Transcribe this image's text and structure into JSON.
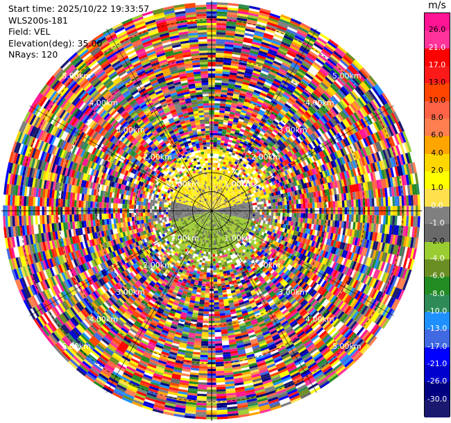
{
  "info": {
    "start_time": "Start time: 2025/10/22 19:33:57",
    "instrument": "WLS200s-181",
    "field": "Field: VEL",
    "elevation": "Elevation(deg): 35.00",
    "nrays": "NRays: 120"
  },
  "colorbar": {
    "unit": "m/s",
    "ticks": [
      "26.0",
      "21.0",
      "17.0",
      "13.0",
      "10.0",
      "8.0",
      "6.0",
      "4.0",
      "2.0",
      "1.0",
      "0.0",
      "-1.0",
      "-2.0",
      "-4.0",
      "-6.0",
      "-8.0",
      "-10.0",
      "-13.0",
      "-17.0",
      "-21.0",
      "-26.0",
      "-30.0"
    ],
    "colors": [
      "#ff1493",
      "#ff3399",
      "#ff0000",
      "#ff1a1a",
      "#ff4500",
      "#ff6347",
      "#ff7f50",
      "#ffa500",
      "#ffd700",
      "#ffff00",
      "#ffe14d",
      "#808080",
      "#696969",
      "#9acd32",
      "#6b8e23",
      "#228b22",
      "#2e8b57",
      "#1e90ff",
      "#4169e1",
      "#0000ff",
      "#0000cd",
      "#000080",
      "#191970"
    ]
  },
  "chart_data": {
    "type": "heatmap",
    "title": "",
    "projection": "polar (PPI)",
    "field": "VEL",
    "elevation_deg": 35.0,
    "n_rays": 120,
    "range_rings_km": [
      1.0,
      2.0,
      3.0,
      4.0,
      5.0
    ],
    "range_labels": [
      "1.00km",
      "2.00km",
      "3.00km",
      "4.00km",
      "5.00km"
    ],
    "max_range_km": 5.5,
    "colormap_range": [
      -30.0,
      30.0
    ],
    "features": {
      "near_range_north_velocity": "positive ~2-4 m/s (yellow)",
      "near_range_south_velocity": "negative ~-1 to -2 m/s (olive green)",
      "near_range_ew_velocity": "~0 m/s (gray)",
      "far_range": "noise, all colors"
    }
  }
}
